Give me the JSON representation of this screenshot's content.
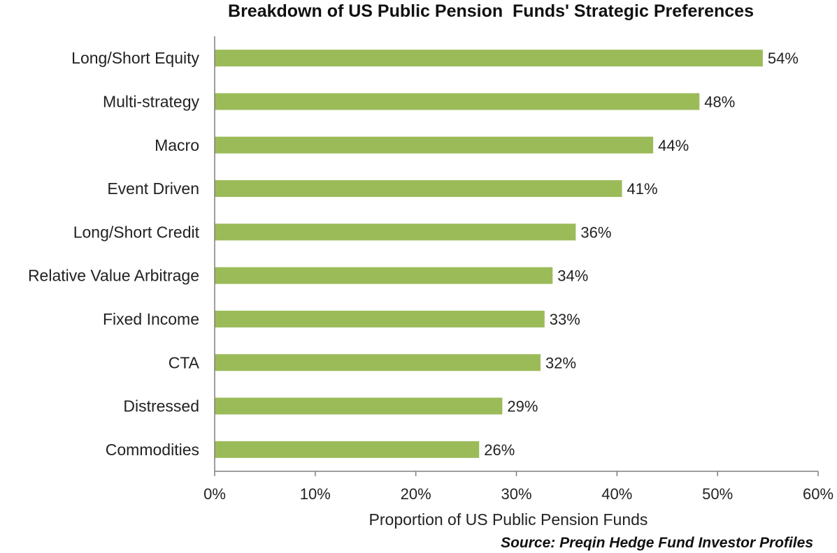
{
  "chart_data": {
    "type": "bar",
    "orientation": "horizontal",
    "title": "Breakdown of US Public Pension  Funds' Strategic Preferences",
    "xlabel": "Proportion of US Public Pension Funds",
    "ylabel": "",
    "source": "Source: Preqin Hedge Fund Investor Profiles",
    "categories": [
      "Long/Short Equity",
      "Multi-strategy",
      "Macro",
      "Event Driven",
      "Long/Short Credit",
      "Relative Value Arbitrage",
      "Fixed Income",
      "CTA",
      "Distressed",
      "Commodities"
    ],
    "values": [
      54.5,
      48.2,
      43.6,
      40.5,
      35.9,
      33.6,
      32.8,
      32.4,
      28.6,
      26.3
    ],
    "data_labels": [
      "54%",
      "48%",
      "44%",
      "41%",
      "36%",
      "34%",
      "33%",
      "32%",
      "29%",
      "26%"
    ],
    "xlim": [
      0,
      60
    ],
    "xticks": [
      0,
      10,
      20,
      30,
      40,
      50,
      60
    ],
    "xtick_labels": [
      "0%",
      "10%",
      "20%",
      "30%",
      "40%",
      "50%",
      "60%"
    ],
    "grid": false,
    "legend": "none",
    "bar_color": "#9bbb59"
  }
}
